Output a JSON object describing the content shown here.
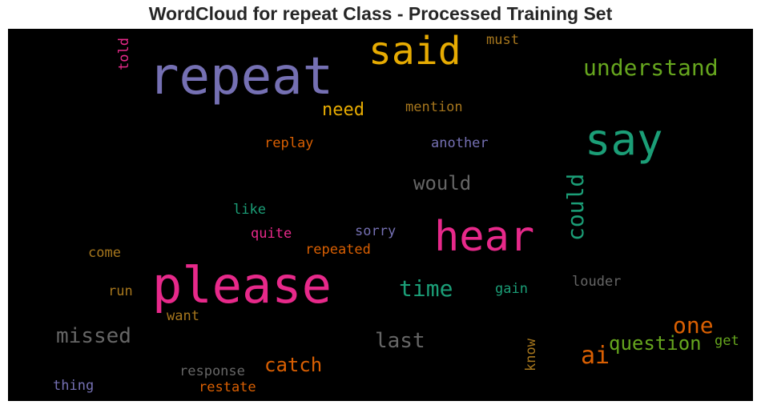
{
  "title": "WordCloud for repeat Class - Processed Training Set",
  "colors": {
    "purple": "#7570b3",
    "magenta": "#e7298a",
    "gold": "#e6ab02",
    "green": "#66a61e",
    "teal": "#1b9e77",
    "orange": "#d95f02",
    "brown": "#a6761d",
    "gray": "#666666"
  },
  "words": [
    {
      "text": "repeat",
      "color": "purple"
    },
    {
      "text": "please",
      "color": "magenta"
    },
    {
      "text": "said",
      "color": "gold"
    },
    {
      "text": "say",
      "color": "teal"
    },
    {
      "text": "hear",
      "color": "magenta"
    },
    {
      "text": "understand",
      "color": "green"
    },
    {
      "text": "could",
      "color": "teal"
    },
    {
      "text": "need",
      "color": "gold"
    },
    {
      "text": "time",
      "color": "teal"
    },
    {
      "text": "ai",
      "color": "orange"
    },
    {
      "text": "one",
      "color": "orange"
    },
    {
      "text": "question",
      "color": "green"
    },
    {
      "text": "catch",
      "color": "orange"
    },
    {
      "text": "missed",
      "color": "gray"
    },
    {
      "text": "last",
      "color": "gray"
    },
    {
      "text": "would",
      "color": "gray"
    },
    {
      "text": "mention",
      "color": "brown"
    },
    {
      "text": "must",
      "color": "brown"
    },
    {
      "text": "told",
      "color": "magenta"
    },
    {
      "text": "replay",
      "color": "orange"
    },
    {
      "text": "another",
      "color": "purple"
    },
    {
      "text": "like",
      "color": "teal"
    },
    {
      "text": "quite",
      "color": "magenta"
    },
    {
      "text": "sorry",
      "color": "purple"
    },
    {
      "text": "repeated",
      "color": "orange"
    },
    {
      "text": "come",
      "color": "brown"
    },
    {
      "text": "run",
      "color": "brown"
    },
    {
      "text": "gain",
      "color": "teal"
    },
    {
      "text": "louder",
      "color": "gray"
    },
    {
      "text": "want",
      "color": "brown"
    },
    {
      "text": "know",
      "color": "brown"
    },
    {
      "text": "get",
      "color": "green"
    },
    {
      "text": "response",
      "color": "gray"
    },
    {
      "text": "restate",
      "color": "orange"
    },
    {
      "text": "thing",
      "color": "purple"
    }
  ]
}
